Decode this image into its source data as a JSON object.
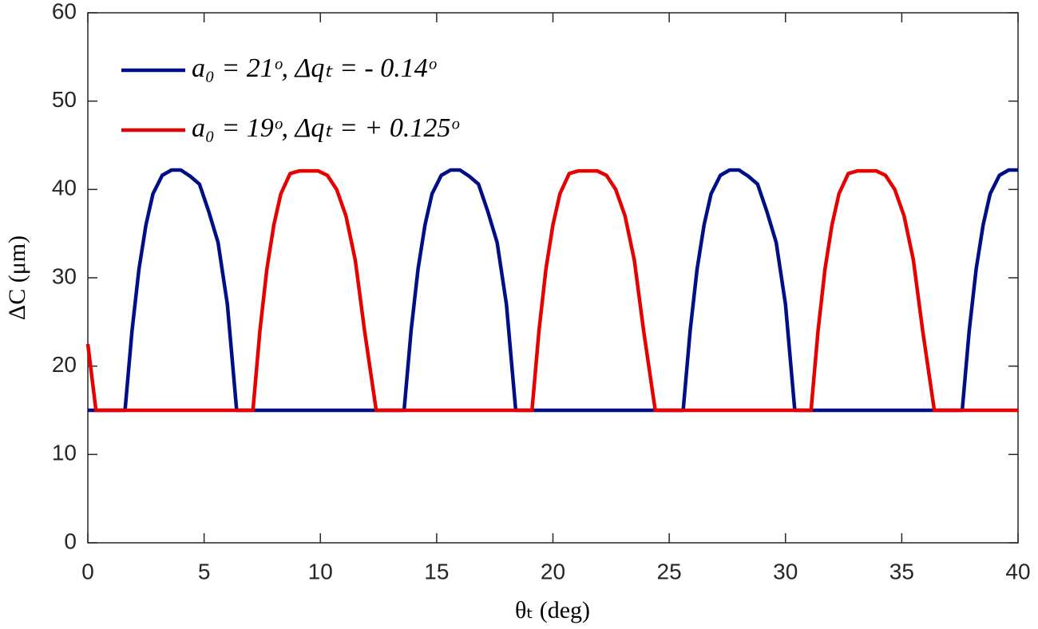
{
  "chart_data": {
    "type": "line",
    "xlabel": "θₜ (deg)",
    "ylabel": "ΔC (μm)",
    "xlim": [
      0,
      40
    ],
    "xticks": [
      0,
      5,
      10,
      15,
      20,
      25,
      30,
      35,
      40
    ],
    "ylim": [
      0,
      60
    ],
    "yticks": [
      0,
      10,
      20,
      30,
      40,
      50,
      60
    ],
    "legend": "upper-left",
    "series": [
      {
        "name": "a₀ = 21ᵒ, Δqₜ = - 0.14ᵒ",
        "color": "#000f87",
        "x": [
          0,
          1.6,
          1.9,
          2.2,
          2.5,
          2.8,
          3.2,
          3.6,
          4.0,
          4.4,
          4.8,
          5.2,
          5.6,
          6.0,
          6.4,
          13.6,
          13.9,
          14.2,
          14.5,
          14.8,
          15.2,
          15.6,
          16.0,
          16.4,
          16.8,
          17.2,
          17.6,
          18.0,
          18.4,
          25.6,
          25.9,
          26.2,
          26.5,
          26.8,
          27.2,
          27.6,
          28.0,
          28.4,
          28.8,
          29.2,
          29.6,
          30.0,
          30.4,
          37.6,
          37.9,
          38.2,
          38.5,
          38.8,
          39.2,
          39.6,
          40.0
        ],
        "values": [
          15,
          15,
          24,
          31,
          36,
          39.5,
          41.6,
          42.2,
          42.2,
          41.5,
          40.6,
          37.5,
          34,
          27,
          15,
          15,
          24,
          31,
          36,
          39.5,
          41.6,
          42.2,
          42.2,
          41.5,
          40.6,
          37.5,
          34,
          27,
          15,
          15,
          24,
          31,
          36,
          39.5,
          41.6,
          42.2,
          42.2,
          41.5,
          40.6,
          37.5,
          34,
          27,
          15,
          15,
          24,
          31,
          36,
          39.5,
          41.6,
          42.2,
          42.2
        ]
      },
      {
        "name": "a₀ = 19ᵒ, Δqₜ = + 0.125ᵒ",
        "color": "#e60000",
        "x": [
          0,
          0.35,
          7.1,
          7.4,
          7.7,
          8.0,
          8.3,
          8.7,
          9.1,
          9.5,
          9.9,
          10.3,
          10.7,
          11.1,
          11.5,
          11.9,
          12.4,
          19.1,
          19.4,
          19.7,
          20.0,
          20.3,
          20.7,
          21.1,
          21.5,
          21.9,
          22.3,
          22.7,
          23.1,
          23.5,
          23.9,
          24.4,
          31.1,
          31.4,
          31.7,
          32.0,
          32.3,
          32.7,
          33.1,
          33.5,
          33.9,
          34.3,
          34.7,
          35.1,
          35.5,
          35.9,
          36.4,
          40
        ],
        "values": [
          22.5,
          15,
          15,
          24,
          31,
          36,
          39.5,
          41.8,
          42.1,
          42.1,
          42.1,
          41.6,
          40,
          37,
          32,
          24,
          15,
          15,
          24,
          31,
          36,
          39.5,
          41.8,
          42.1,
          42.1,
          42.1,
          41.6,
          40,
          37,
          32,
          24,
          15,
          15,
          24,
          31,
          36,
          39.5,
          41.8,
          42.1,
          42.1,
          42.1,
          41.6,
          40,
          37,
          32,
          24,
          15,
          15
        ]
      }
    ]
  }
}
